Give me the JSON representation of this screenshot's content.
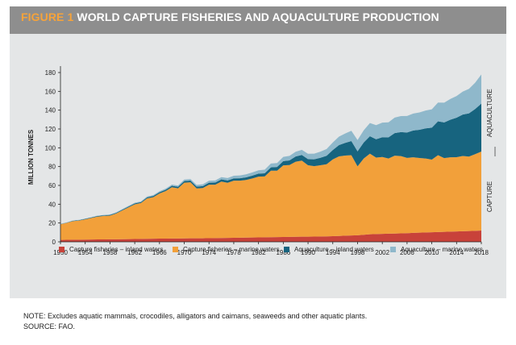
{
  "figure": {
    "number": "FIGURE 1",
    "title": "WORLD CAPTURE FISHERIES AND AQUACULTURE PRODUCTION"
  },
  "notes": {
    "note": "NOTE: Excludes aquatic mammals, crocodiles, alligators and caimans, seaweeds and other aquatic plants.",
    "source": "SOURCE: FAO."
  },
  "chart_data": {
    "type": "area",
    "stacked": true,
    "ylabel": "MILLION TONNES",
    "xlabel": "",
    "ylim": [
      0,
      180
    ],
    "y_ticks": [
      0,
      20,
      40,
      60,
      80,
      100,
      120,
      140,
      160,
      180
    ],
    "x_ticks": [
      1950,
      1954,
      1958,
      1962,
      1966,
      1970,
      1974,
      1978,
      1982,
      1986,
      1990,
      1994,
      1998,
      2002,
      2006,
      2010,
      2014,
      2018
    ],
    "xlim": [
      1950,
      2018
    ],
    "grid": false,
    "legend_position": "bottom",
    "annotations": {
      "upper_bracket_label": "AQUACULTURE",
      "lower_bracket_label": "CAPTURE"
    },
    "colors": {
      "capture_inland": "#c8423a",
      "capture_marine": "#f2a03a",
      "aquaculture_inland": "#17647f",
      "aquaculture_marine": "#8fb8cb"
    },
    "x": [
      1950,
      1951,
      1952,
      1953,
      1954,
      1955,
      1956,
      1957,
      1958,
      1959,
      1960,
      1961,
      1962,
      1963,
      1964,
      1965,
      1966,
      1967,
      1968,
      1969,
      1970,
      1971,
      1972,
      1973,
      1974,
      1975,
      1976,
      1977,
      1978,
      1979,
      1980,
      1981,
      1982,
      1983,
      1984,
      1985,
      1986,
      1987,
      1988,
      1989,
      1990,
      1991,
      1992,
      1993,
      1994,
      1995,
      1996,
      1997,
      1998,
      1999,
      2000,
      2001,
      2002,
      2003,
      2004,
      2005,
      2006,
      2007,
      2008,
      2009,
      2010,
      2011,
      2012,
      2013,
      2014,
      2015,
      2016,
      2017,
      2018
    ],
    "series": [
      {
        "name": "Capture fisheries – inland waters",
        "color_key": "capture_inland",
        "values": [
          2.0,
          2.1,
          2.2,
          2.3,
          2.4,
          2.5,
          2.6,
          2.6,
          2.7,
          2.7,
          2.8,
          2.9,
          3.0,
          3.1,
          3.2,
          3.3,
          3.4,
          3.4,
          3.5,
          3.5,
          3.6,
          3.7,
          3.8,
          3.8,
          3.9,
          4.0,
          4.1,
          4.2,
          4.3,
          4.4,
          4.5,
          4.6,
          4.7,
          4.8,
          4.9,
          5.0,
          5.1,
          5.2,
          5.4,
          5.5,
          5.5,
          5.6,
          5.7,
          5.8,
          6.0,
          6.2,
          6.5,
          6.8,
          7.0,
          7.5,
          8.0,
          8.3,
          8.5,
          8.7,
          8.8,
          9.0,
          9.2,
          9.5,
          9.8,
          10.0,
          10.2,
          10.4,
          10.6,
          10.8,
          11.0,
          11.2,
          11.5,
          11.7,
          12.0
        ]
      },
      {
        "name": "Capture fisheries – marine waters",
        "color_key": "capture_marine",
        "values": [
          16.6,
          18.0,
          19.8,
          20.3,
          21.5,
          22.9,
          24.2,
          24.9,
          25.2,
          27.4,
          30.6,
          33.7,
          36.9,
          38.1,
          43.0,
          44.2,
          48.0,
          50.6,
          54.6,
          53.4,
          59.3,
          59.6,
          53.0,
          53.4,
          56.9,
          56.8,
          60.0,
          58.6,
          60.7,
          60.6,
          61.3,
          62.8,
          64.6,
          64.7,
          70.7,
          70.6,
          76.2,
          76.4,
          79.8,
          80.9,
          75.9,
          74.9,
          75.7,
          76.7,
          81.6,
          84.7,
          85.2,
          85.3,
          73.2,
          81.1,
          85.8,
          81.3,
          81.7,
          79.9,
          82.8,
          82.2,
          80.1,
          80.4,
          79.3,
          78.6,
          77.2,
          81.7,
          78.4,
          79.1,
          79.0,
          80.1,
          79.1,
          81.5,
          84.0
        ]
      },
      {
        "name": "Aquaculture – inland waters",
        "color_key": "aquaculture_inland",
        "values": [
          0.3,
          0.3,
          0.4,
          0.4,
          0.5,
          0.5,
          0.6,
          0.6,
          0.7,
          0.7,
          0.8,
          0.9,
          0.9,
          1.0,
          1.1,
          1.2,
          1.3,
          1.4,
          1.5,
          1.6,
          1.7,
          1.8,
          1.9,
          2.0,
          2.1,
          2.2,
          2.3,
          2.4,
          2.5,
          2.6,
          2.8,
          3.0,
          3.2,
          3.4,
          3.6,
          4.0,
          4.5,
          5.0,
          5.5,
          6.0,
          6.5,
          7.2,
          8.0,
          9.0,
          10.0,
          12.0,
          13.5,
          15.0,
          16.0,
          17.0,
          18.5,
          19.5,
          21.0,
          22.5,
          24.0,
          25.5,
          27.0,
          28.5,
          30.0,
          32.0,
          34.0,
          36.0,
          38.0,
          40.0,
          42.0,
          44.0,
          46.0,
          48.0,
          51.0
        ]
      },
      {
        "name": "Aquaculture – marine waters",
        "color_key": "aquaculture_marine",
        "values": [
          0.3,
          0.3,
          0.3,
          0.4,
          0.4,
          0.4,
          0.5,
          0.5,
          0.5,
          0.6,
          0.6,
          0.7,
          0.8,
          0.8,
          0.9,
          1.0,
          1.1,
          1.2,
          1.3,
          1.4,
          1.6,
          1.7,
          1.8,
          2.0,
          2.1,
          2.2,
          2.4,
          2.6,
          2.8,
          3.0,
          3.2,
          3.4,
          3.6,
          3.8,
          4.0,
          4.2,
          4.5,
          4.8,
          5.1,
          5.4,
          5.7,
          6.0,
          6.5,
          7.2,
          8.0,
          9.0,
          10.0,
          11.0,
          12.0,
          13.0,
          14.0,
          15.0,
          15.5,
          16.0,
          16.5,
          17.0,
          17.5,
          18.0,
          18.5,
          19.0,
          19.5,
          20.0,
          21.0,
          22.0,
          23.0,
          24.5,
          26.0,
          28.0,
          31.0
        ]
      }
    ]
  }
}
